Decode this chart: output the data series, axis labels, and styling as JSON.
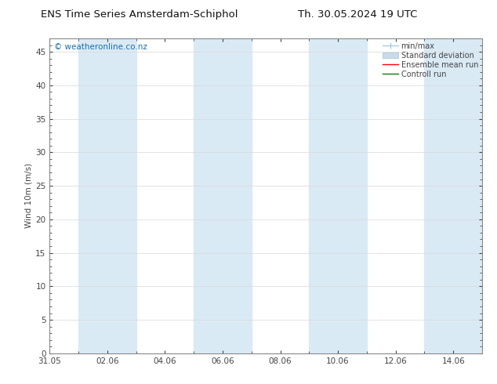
{
  "title_left": "ENS Time Series Amsterdam-Schiphol",
  "title_right": "Th. 30.05.2024 19 UTC",
  "ylabel": "Wind 10m (m/s)",
  "watermark": "© weatheronline.co.nz",
  "watermark_color": "#1a6fa8",
  "ylim": [
    0,
    47
  ],
  "yticks": [
    0,
    5,
    10,
    15,
    20,
    25,
    30,
    35,
    40,
    45
  ],
  "x_tick_labels": [
    "31.05",
    "02.06",
    "04.06",
    "06.06",
    "08.06",
    "10.06",
    "12.06",
    "14.06"
  ],
  "x_tick_positions": [
    0,
    2,
    4,
    6,
    8,
    10,
    12,
    14
  ],
  "xlim": [
    0,
    15
  ],
  "shade_bands": [
    [
      1,
      3
    ],
    [
      5,
      7
    ],
    [
      9,
      11
    ],
    [
      13,
      15
    ]
  ],
  "shade_color": "#daeaf5",
  "background_color": "#ffffff",
  "plot_bg_color": "#ffffff",
  "grid_color": "#d8d8d8",
  "legend_items": [
    {
      "label": "min/max",
      "color": "#a8cce0",
      "type": "errorbar"
    },
    {
      "label": "Standard deviation",
      "color": "#c8dce8",
      "type": "fill"
    },
    {
      "label": "Ensemble mean run",
      "color": "#ff0000",
      "type": "line"
    },
    {
      "label": "Controll run",
      "color": "#008000",
      "type": "line"
    }
  ],
  "border_color": "#888888",
  "tick_color": "#444444",
  "font_size_title": 9.5,
  "font_size_axis": 7.5,
  "font_size_legend": 7,
  "font_size_watermark": 7.5,
  "dpi": 100,
  "figsize": [
    6.34,
    4.9
  ]
}
